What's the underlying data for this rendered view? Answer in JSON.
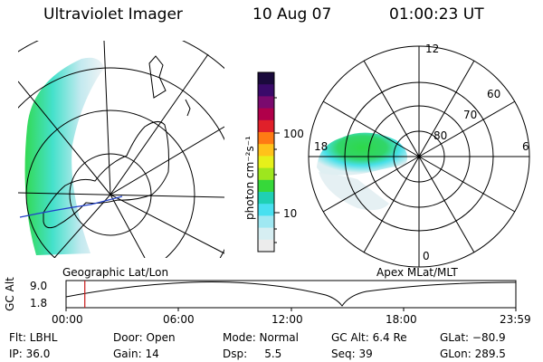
{
  "header": {
    "instrument": "Ultraviolet Imager",
    "date": "10 Aug 07",
    "time": "01:00:23 UT"
  },
  "panels": {
    "left_label": "Geographic Lat/Lon",
    "right_label": "Apex MLat/MLT"
  },
  "colorbar": {
    "unit_label": "photon cm⁻²s⁻¹",
    "tick_100": "100",
    "tick_10": "10",
    "colors": [
      "#1a0a3c",
      "#3a0a6a",
      "#7a0a6e",
      "#b0004a",
      "#e0202a",
      "#ff7a14",
      "#ffc21a",
      "#e6f01a",
      "#9ee61e",
      "#36d83a",
      "#1fd0b4",
      "#48e0f0",
      "#9fe8f2",
      "#d6eef2",
      "#ececec"
    ]
  },
  "polar": {
    "lat_labels": [
      "80",
      "70",
      "60"
    ],
    "mlt_labels": [
      "12",
      "18",
      "6",
      "0"
    ]
  },
  "gc_alt": {
    "axis_title": "GC Alt",
    "y_max": "9.0",
    "y_min": "1.8",
    "time_ticks": [
      "00:00",
      "06:00",
      "12:00",
      "18:00",
      "23:59"
    ],
    "current_fraction": 0.0417
  },
  "status": {
    "flt": "Flt: LBHL",
    "ip": "IP: 36.0",
    "door": "Door: Open",
    "gain": "Gain: 14",
    "mode": "Mode: Normal",
    "dsp": "Dsp:     5.5",
    "gcalt": "GC Alt: 6.4 Re",
    "seq": "Seq: 39",
    "glat": "GLat: −80.9",
    "glon": "GLon: 289.5"
  }
}
